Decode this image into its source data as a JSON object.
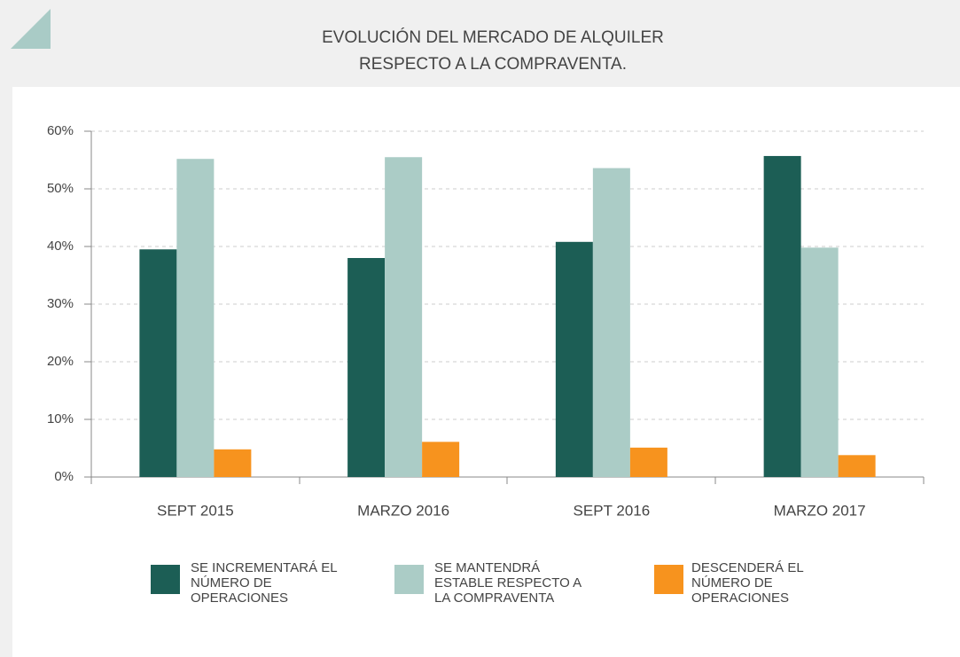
{
  "chart_data": {
    "type": "bar",
    "title": [
      "EVOLUCIÓN DEL MERCADO DE ALQUILER",
      "RESPECTO A LA COMPRAVENTA."
    ],
    "categories": [
      "SEPT 2015",
      "MARZO 2016",
      "SEPT 2016",
      "MARZO 2017"
    ],
    "series": [
      {
        "name": "SE INCREMENTARÁ EL NÚMERO DE OPERACIONES",
        "color": "#1c5e55",
        "values": [
          39.5,
          38,
          40.8,
          55.7
        ]
      },
      {
        "name": "SE MANTENDRÁ ESTABLE RESPECTO A LA COMPRAVENTA",
        "color": "#abccc6",
        "values": [
          55.2,
          55.5,
          53.6,
          39.8
        ]
      },
      {
        "name": "DESCENDERÁ EL NÚMERO DE OPERACIONES",
        "color": "#f7931e",
        "values": [
          4.8,
          6.1,
          5.1,
          3.8
        ]
      }
    ],
    "ylim": [
      0,
      60
    ],
    "yticks": [
      {
        "value": 0,
        "label": "0%"
      },
      {
        "value": 10,
        "label": "10%"
      },
      {
        "value": 20,
        "label": "20%"
      },
      {
        "value": 30,
        "label": "30%"
      },
      {
        "value": 40,
        "label": "40%"
      },
      {
        "value": 50,
        "label": "50%"
      },
      {
        "value": 60,
        "label": "60%"
      }
    ],
    "grid": true
  }
}
